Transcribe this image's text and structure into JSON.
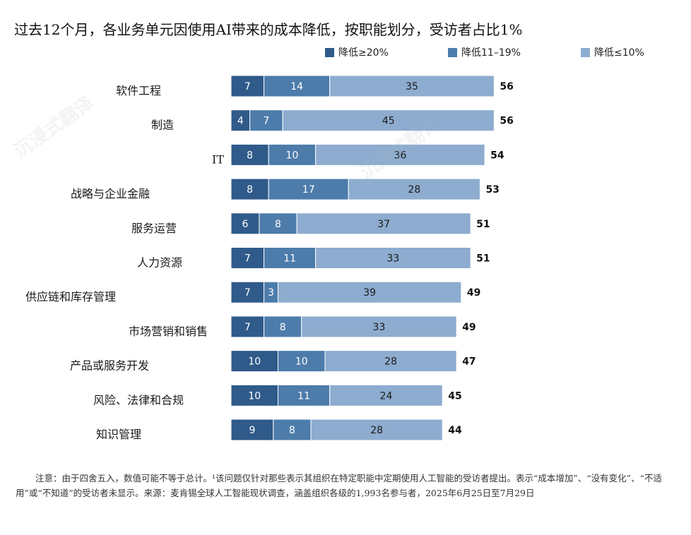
{
  "colors": {
    "series1": "#2f5a8a",
    "series2": "#4d7cab",
    "series3": "#8daccf"
  },
  "chart_data": {
    "type": "bar",
    "orientation": "horizontal",
    "stacked": true,
    "title": "过去12个月，各业务单元因使用AI带来的成本降低，按职能划分，受访者占比1%",
    "categories": [
      "软件工程",
      "制造",
      "IT",
      "战略与企业金融",
      "服务运营",
      "人力资源",
      "供应链和库存管理",
      "市场营销和销售",
      "产品或服务开发",
      "风险、法律和合规",
      "知识管理"
    ],
    "series": [
      {
        "name": "降低≥20%",
        "values": [
          7,
          4,
          8,
          8,
          6,
          7,
          7,
          7,
          10,
          10,
          9
        ]
      },
      {
        "name": "降低11–19%",
        "values": [
          14,
          7,
          10,
          17,
          8,
          11,
          3,
          8,
          10,
          11,
          8
        ]
      },
      {
        "name": "降低≤10%",
        "values": [
          35,
          45,
          36,
          28,
          37,
          33,
          39,
          33,
          28,
          24,
          28
        ]
      }
    ],
    "totals": [
      56,
      56,
      54,
      53,
      51,
      51,
      49,
      49,
      47,
      45,
      44
    ],
    "xlim": [
      0,
      56
    ],
    "grid": false,
    "legend_position": "top-right"
  },
  "footnote": "注意：由于四舍五入，数值可能不等于总计。¹该问题仅针对那些表示其组织在特定职能中定期使用人工智能的受访者提出。表示“成本增加”、“没有变化”、“不适用”或“不知道”的受访者未显示。来源：麦肯锡全球人工智能现状调查，涵盖组织各级的1,993名参与者，2025年6月25日至7月29日",
  "watermark_text": "沉浸式翻译"
}
